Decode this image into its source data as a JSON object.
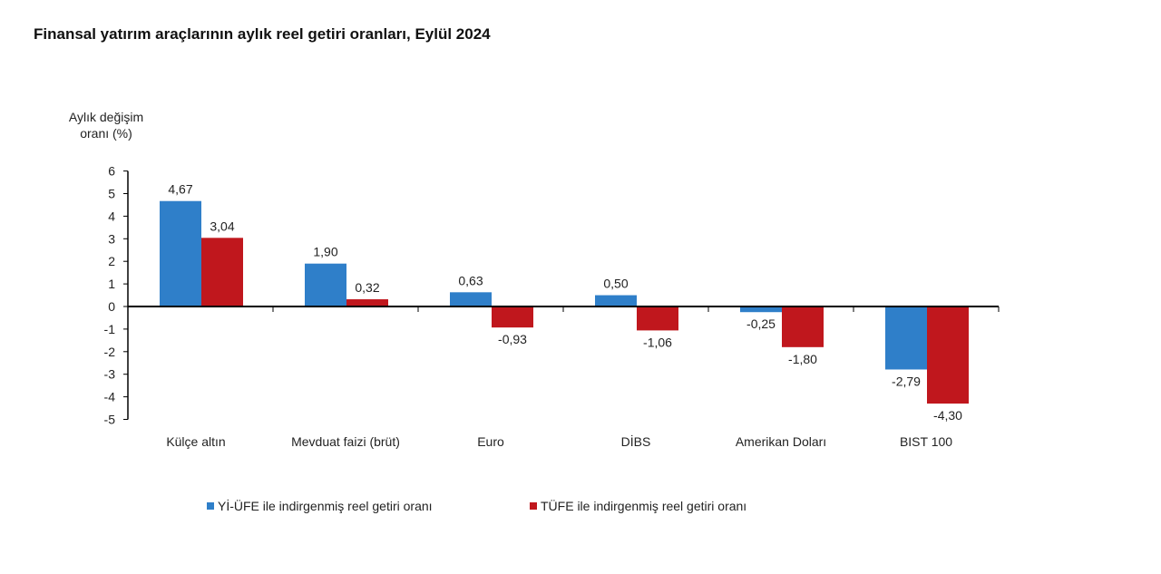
{
  "chart_data": {
    "type": "bar",
    "title": "Finansal yatırım araçlarının aylık reel getiri oranları, Eylül 2024",
    "ylabel": "Aylık değişim oranı (%)",
    "ylim": [
      -5,
      6
    ],
    "yticks": [
      6,
      5,
      4,
      3,
      2,
      1,
      0,
      -1,
      -2,
      -3,
      -4,
      -5
    ],
    "categories": [
      "Külçe altın",
      "Mevduat faizi (brüt)",
      "Euro",
      "DİBS",
      "Amerikan Doları",
      "BIST 100"
    ],
    "series": [
      {
        "name": "Yİ-ÜFE ile indirgenmiş reel getiri oranı",
        "color": "#2f7fc9",
        "values": [
          4.67,
          1.9,
          0.63,
          0.5,
          -0.25,
          -2.79
        ],
        "labels": [
          "4,67",
          "1,90",
          "0,63",
          "0,50",
          "-0,25",
          "-2,79"
        ]
      },
      {
        "name": "TÜFE ile indirgenmiş reel getiri oranı",
        "color": "#c0171d",
        "values": [
          3.04,
          0.32,
          -0.93,
          -1.06,
          -1.8,
          -4.3
        ],
        "labels": [
          "3,04",
          "0,32",
          "-0,93",
          "-1,06",
          "-1,80",
          "-4,30"
        ]
      }
    ],
    "grid": false,
    "legend": "bottom"
  }
}
